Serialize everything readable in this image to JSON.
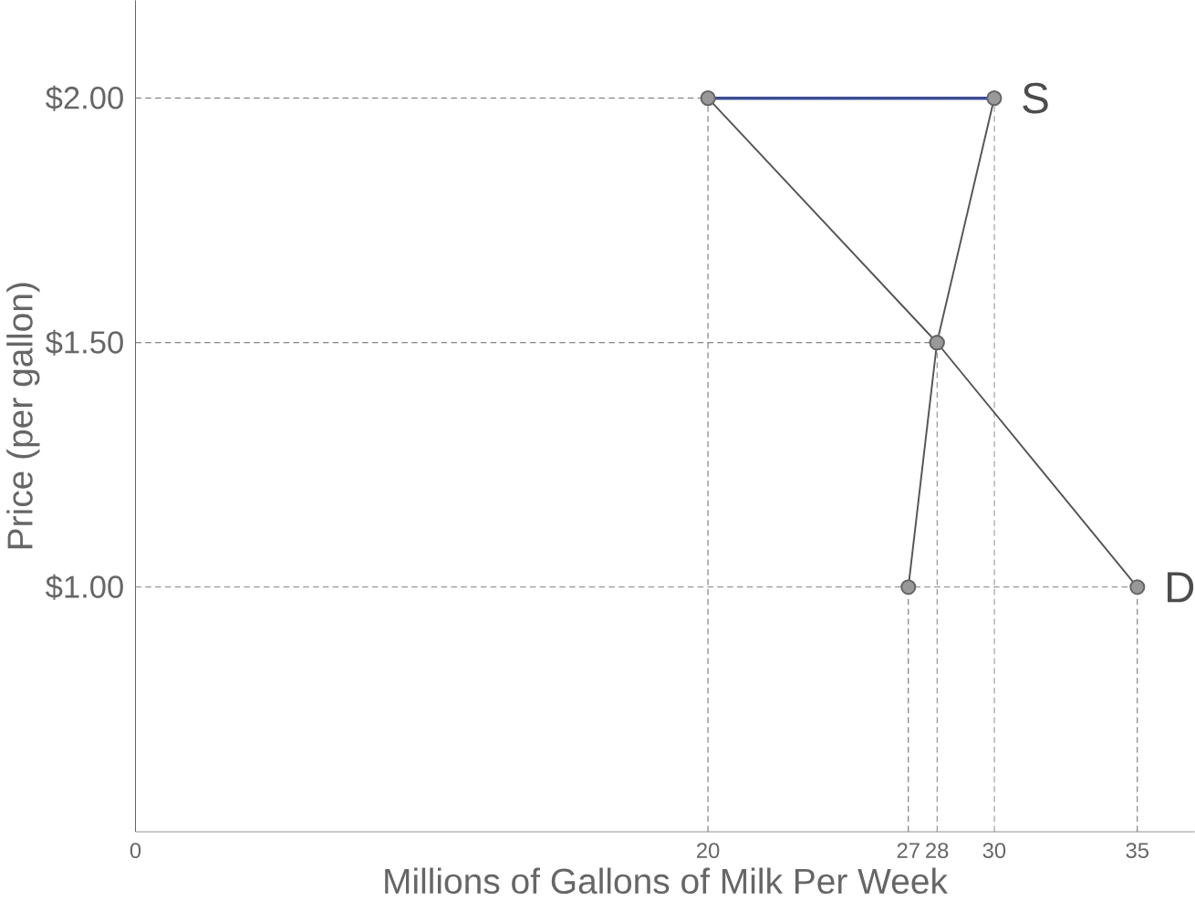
{
  "chart_data": {
    "type": "line",
    "xlabel": "Millions of Gallons of Milk Per Week",
    "ylabel": "Price (per gallon)",
    "xlim": [
      0,
      37
    ],
    "xticks": [
      0,
      20,
      27,
      28,
      30,
      35
    ],
    "ylim": [
      0.5,
      2.2
    ],
    "yticks": [
      {
        "value": 1.0,
        "label": "$1.00"
      },
      {
        "value": 1.5,
        "label": "$1.50"
      },
      {
        "value": 2.0,
        "label": "$2.00"
      }
    ],
    "marker": "circle",
    "legend": false,
    "grid": false,
    "ref_lines": [
      {
        "axis": "x",
        "value": 20,
        "line_style": "dashed"
      },
      {
        "axis": "x",
        "value": 27,
        "line_style": "dashed"
      },
      {
        "axis": "x",
        "value": 28,
        "line_style": "dashed"
      },
      {
        "axis": "x",
        "value": 30,
        "line_style": "dashed"
      },
      {
        "axis": "x",
        "value": 35,
        "line_style": "dashed"
      },
      {
        "axis": "y",
        "value": 1.0,
        "line_style": "dashed"
      },
      {
        "axis": "y",
        "value": 1.5,
        "line_style": "dashed"
      },
      {
        "axis": "y",
        "value": 2.0,
        "line_style": "dashed"
      }
    ],
    "series": [
      {
        "name": "D",
        "color": "#555555",
        "x": [
          20,
          28,
          35
        ],
        "values": [
          2.0,
          1.5,
          1.0
        ]
      },
      {
        "name": "S",
        "color": "#555555",
        "x": [
          27,
          28,
          30
        ],
        "values": [
          1.0,
          1.5,
          2.0
        ]
      },
      {
        "color": "#3a4fa0",
        "x": [
          20,
          30
        ],
        "values": [
          2.0,
          2.0
        ],
        "marker": "none"
      }
    ]
  }
}
